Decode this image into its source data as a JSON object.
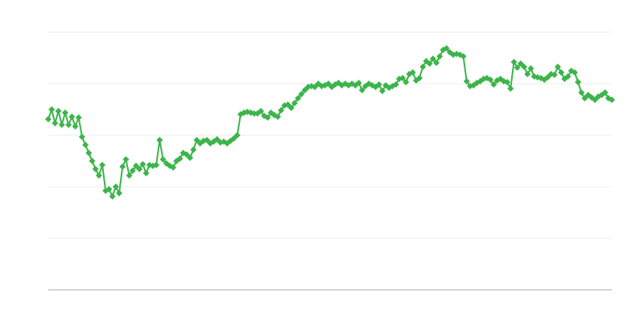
{
  "chart_data": {
    "type": "line",
    "color": "#3cb44b",
    "ylim": [
      0,
      320
    ],
    "yticks": [
      0,
      64,
      128,
      192,
      256,
      320
    ],
    "grid": true,
    "values": [
      212,
      224,
      207,
      222,
      205,
      220,
      205,
      215,
      203,
      214,
      190,
      180,
      170,
      160,
      150,
      142,
      155,
      123,
      125,
      116,
      128,
      120,
      153,
      162,
      142,
      148,
      154,
      150,
      156,
      145,
      155,
      154,
      155,
      186,
      162,
      157,
      154,
      152,
      160,
      163,
      170,
      168,
      164,
      174,
      186,
      182,
      185,
      186,
      182,
      184,
      187,
      183,
      184,
      182,
      185,
      188,
      192,
      218,
      220,
      221,
      220,
      219,
      219,
      222,
      216,
      214,
      220,
      217,
      215,
      223,
      229,
      230,
      226,
      232,
      238,
      243,
      248,
      252,
      253,
      252,
      256,
      253,
      254,
      256,
      252,
      255,
      257,
      254,
      256,
      254,
      256,
      254,
      257,
      248,
      253,
      256,
      254,
      252,
      255,
      247,
      254,
      251,
      253,
      255,
      262,
      263,
      258,
      268,
      270,
      260,
      263,
      277,
      284,
      281,
      287,
      282,
      290,
      298,
      300,
      295,
      292,
      293,
      292,
      290,
      259,
      253,
      254,
      257,
      259,
      262,
      263,
      261,
      255,
      260,
      262,
      259,
      258,
      250,
      283,
      276,
      281,
      277,
      268,
      275,
      265,
      264,
      263,
      261,
      264,
      268,
      267,
      277,
      270,
      262,
      265,
      272,
      270,
      258,
      245,
      238,
      242,
      239,
      236,
      240,
      242,
      245,
      238,
      236
    ]
  }
}
